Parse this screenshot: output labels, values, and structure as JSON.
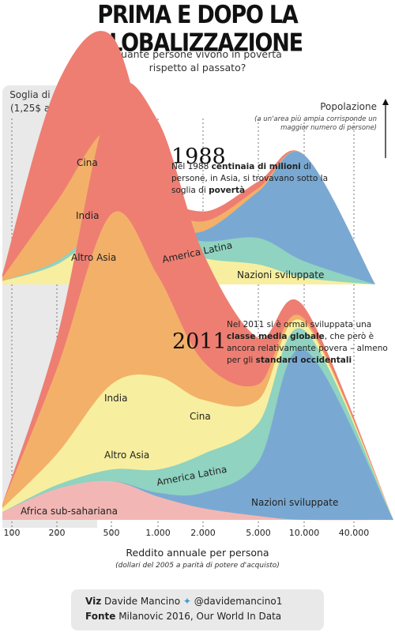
{
  "title": "PRIMA E DOPO LA GLOBALIZZAZIONE",
  "subtitle": "Quante persone vivono in povertà rispetto al passato?",
  "poverty": {
    "label_line1": "Soglia di povertà",
    "label_line2": "(1,25$ al giorno)"
  },
  "population": {
    "title": "Popolazione",
    "note": "(a un'area più ampia corrisponde un maggior numero di persone)"
  },
  "panel_1988": {
    "year": "1988",
    "note_a": "Nel 1988 ",
    "note_b": "centinaia di milioni",
    "note_c": " di persone, in Asia, si trovavano sotto la soglia di ",
    "note_d": "povertà"
  },
  "panel_2011": {
    "year": "2011",
    "note_a": "Nel 2011 si è ormai sviluppata una ",
    "note_b": "classe media globale",
    "note_c": ", che però è ancora relativamente povera – almeno per gli ",
    "note_d": "standard occidentali"
  },
  "x_ticks": [
    "100",
    "200",
    "500",
    "1.000",
    "2.000",
    "5.000",
    "10.000",
    "40.000"
  ],
  "xlabel": "Reddito annuale per persona",
  "xsub": "(dollari del 2005 a parità di potere d'acquisto)",
  "credits": {
    "viz_label": "Viz",
    "viz_name": "Davide Mancino",
    "twitter_icon": "bird-icon",
    "handle": "@davidemancino1",
    "source_label": "Fonte",
    "source_value": "Milanovic 2016, Our World In Data"
  },
  "colors": {
    "Cina": "#ee7e72",
    "India": "#f3b069",
    "Altro Asia": "#f7ef9f",
    "America Latina": "#8fd3c0",
    "Africa sub-sahariana": "#f2b7b4",
    "Nazioni sviluppate": "#79a9d3",
    "Nazioni sviluppate accent": "#b96fb8"
  },
  "chart_data": [
    {
      "type": "area",
      "title": "1988",
      "x": [
        100,
        200,
        500,
        1000,
        2000,
        5000,
        10000,
        40000
      ],
      "xscale": "log",
      "stacked": true,
      "series": [
        {
          "name": "Altro Asia",
          "values": [
            1,
            6,
            17,
            14,
            8,
            6,
            2,
            0
          ]
        },
        {
          "name": "America Latina",
          "values": [
            0,
            1,
            2,
            3,
            5,
            8,
            5,
            0
          ]
        },
        {
          "name": "Nazioni sviluppate",
          "values": [
            0,
            0,
            0,
            1,
            3,
            14,
            32,
            0
          ]
        },
        {
          "name": "India",
          "values": [
            1,
            18,
            28,
            8,
            3,
            1,
            0,
            0
          ]
        },
        {
          "name": "Cina",
          "values": [
            1,
            35,
            28,
            6,
            3,
            2,
            0,
            0
          ]
        }
      ]
    },
    {
      "type": "area",
      "title": "2011",
      "x": [
        100,
        200,
        500,
        1000,
        2000,
        5000,
        10000,
        40000
      ],
      "xscale": "log",
      "stacked": true,
      "series": [
        {
          "name": "Africa sub-sahariana",
          "values": [
            2,
            8,
            10,
            6,
            3,
            1,
            0,
            0
          ]
        },
        {
          "name": "Nazioni sviluppate",
          "values": [
            0,
            0,
            0,
            1,
            4,
            14,
            44,
            0
          ]
        },
        {
          "name": "America Latina",
          "values": [
            0,
            1,
            3,
            6,
            10,
            10,
            5,
            0
          ]
        },
        {
          "name": "Altro Asia",
          "values": [
            1,
            8,
            22,
            24,
            14,
            6,
            2,
            0
          ]
        },
        {
          "name": "India",
          "values": [
            1,
            22,
            44,
            26,
            10,
            4,
            1,
            0
          ]
        },
        {
          "name": "Cina",
          "values": [
            0,
            8,
            30,
            40,
            28,
            12,
            3,
            0
          ]
        }
      ]
    }
  ]
}
